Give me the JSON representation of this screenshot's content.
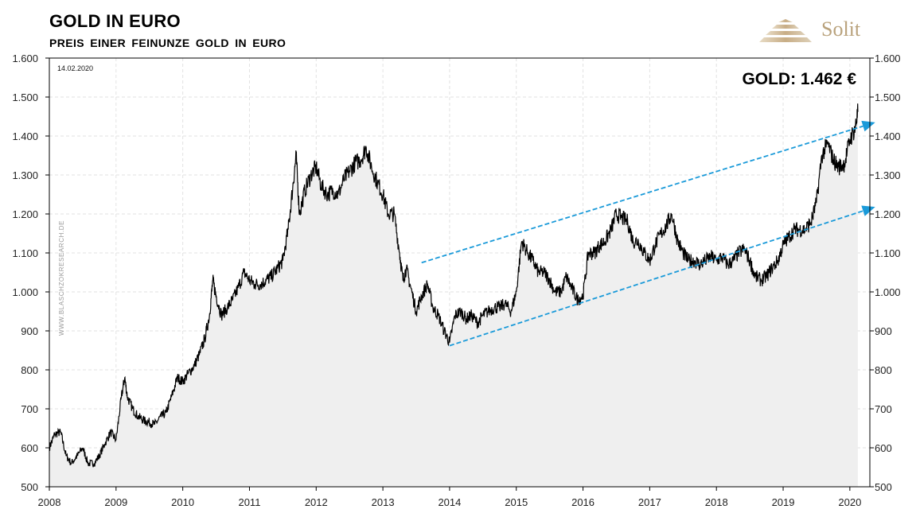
{
  "header": {
    "title": "GOLD IN EURO",
    "subtitle": "PREIS EINER FEINUNZE GOLD IN EURO"
  },
  "logo": {
    "text": "Solit",
    "color": "#b9a27c"
  },
  "chart_data": {
    "type": "area",
    "title": "GOLD IN EURO",
    "subtitle": "PREIS EINER FEINUNZE GOLD IN EURO",
    "date_stamp": "14.02.2020",
    "annotation": "GOLD: 1.462 €",
    "watermark": "WWW.BLASCHZOKRESEARCH.DE",
    "ylim": [
      500,
      1600
    ],
    "xlim": [
      2008.0,
      2020.3
    ],
    "y_ticks": [
      "500",
      "600",
      "700",
      "800",
      "900",
      "1.000",
      "1.100",
      "1.200",
      "1.300",
      "1.400",
      "1.500",
      "1.600"
    ],
    "y_tick_values": [
      500,
      600,
      700,
      800,
      900,
      1000,
      1100,
      1200,
      1300,
      1400,
      1500,
      1600
    ],
    "x_ticks": [
      "2008",
      "2009",
      "2010",
      "2011",
      "2012",
      "2013",
      "2014",
      "2015",
      "2016",
      "2017",
      "2018",
      "2019",
      "2020"
    ],
    "x_tick_values": [
      2008,
      2009,
      2010,
      2011,
      2012,
      2013,
      2014,
      2015,
      2016,
      2017,
      2018,
      2019,
      2020
    ],
    "grid": true,
    "y_axis_both_sides": true,
    "series": [
      {
        "type": "area",
        "color": "#000000",
        "fill": "#efefef",
        "x": [
          2008.0,
          2008.08,
          2008.17,
          2008.25,
          2008.33,
          2008.42,
          2008.5,
          2008.58,
          2008.67,
          2008.75,
          2008.83,
          2008.92,
          2009.0,
          2009.08,
          2009.13,
          2009.17,
          2009.25,
          2009.33,
          2009.42,
          2009.5,
          2009.58,
          2009.67,
          2009.75,
          2009.83,
          2009.92,
          2010.0,
          2010.08,
          2010.17,
          2010.25,
          2010.33,
          2010.4,
          2010.45,
          2010.5,
          2010.58,
          2010.67,
          2010.75,
          2010.83,
          2010.92,
          2011.0,
          2011.08,
          2011.17,
          2011.25,
          2011.33,
          2011.42,
          2011.5,
          2011.58,
          2011.65,
          2011.7,
          2011.75,
          2011.83,
          2011.92,
          2012.0,
          2012.08,
          2012.17,
          2012.25,
          2012.33,
          2012.42,
          2012.5,
          2012.58,
          2012.67,
          2012.75,
          2012.83,
          2012.92,
          2013.0,
          2013.08,
          2013.17,
          2013.25,
          2013.3,
          2013.35,
          2013.42,
          2013.5,
          2013.58,
          2013.67,
          2013.75,
          2013.83,
          2013.92,
          2014.0,
          2014.08,
          2014.17,
          2014.25,
          2014.33,
          2014.42,
          2014.5,
          2014.58,
          2014.67,
          2014.75,
          2014.83,
          2014.92,
          2015.0,
          2015.08,
          2015.17,
          2015.25,
          2015.33,
          2015.42,
          2015.5,
          2015.58,
          2015.67,
          2015.75,
          2015.83,
          2015.92,
          2016.0,
          2016.08,
          2016.17,
          2016.25,
          2016.33,
          2016.42,
          2016.5,
          2016.58,
          2016.67,
          2016.75,
          2016.83,
          2016.92,
          2017.0,
          2017.08,
          2017.17,
          2017.25,
          2017.33,
          2017.42,
          2017.5,
          2017.58,
          2017.67,
          2017.75,
          2017.83,
          2017.92,
          2018.0,
          2018.08,
          2018.17,
          2018.25,
          2018.33,
          2018.42,
          2018.5,
          2018.58,
          2018.67,
          2018.75,
          2018.83,
          2018.92,
          2019.0,
          2019.08,
          2019.17,
          2019.25,
          2019.33,
          2019.42,
          2019.5,
          2019.58,
          2019.67,
          2019.75,
          2019.83,
          2019.92,
          2020.0,
          2020.08,
          2020.12
        ],
        "values": [
          600,
          635,
          640,
          580,
          560,
          580,
          600,
          560,
          560,
          580,
          610,
          640,
          620,
          730,
          780,
          730,
          700,
          680,
          670,
          665,
          660,
          680,
          690,
          730,
          780,
          770,
          790,
          810,
          840,
          880,
          940,
          1030,
          990,
          940,
          960,
          980,
          1010,
          1050,
          1030,
          1020,
          1020,
          1030,
          1040,
          1060,
          1080,
          1160,
          1270,
          1350,
          1200,
          1260,
          1300,
          1320,
          1270,
          1250,
          1260,
          1250,
          1290,
          1310,
          1330,
          1340,
          1370,
          1320,
          1280,
          1250,
          1200,
          1200,
          1100,
          1030,
          1060,
          1010,
          950,
          990,
          1020,
          960,
          940,
          900,
          870,
          940,
          950,
          930,
          940,
          920,
          940,
          950,
          960,
          960,
          970,
          950,
          1000,
          1130,
          1100,
          1080,
          1050,
          1050,
          1030,
          1000,
          1000,
          1040,
          1010,
          980,
          990,
          1100,
          1100,
          1120,
          1130,
          1160,
          1200,
          1190,
          1180,
          1130,
          1130,
          1100,
          1080,
          1120,
          1150,
          1170,
          1200,
          1130,
          1100,
          1080,
          1080,
          1070,
          1080,
          1090,
          1080,
          1090,
          1070,
          1080,
          1100,
          1110,
          1080,
          1040,
          1030,
          1040,
          1060,
          1080,
          1120,
          1140,
          1160,
          1160,
          1160,
          1180,
          1230,
          1350,
          1380,
          1340,
          1320,
          1330,
          1390,
          1420,
          1462
        ]
      }
    ],
    "trendlines": [
      {
        "color": "#1a9ad9",
        "x": [
          2013.58,
          2020.38
        ],
        "y": [
          1075,
          1435
        ],
        "arrow": true
      },
      {
        "color": "#1a9ad9",
        "x": [
          2014.0,
          2020.38
        ],
        "y": [
          862,
          1218
        ],
        "arrow": true
      }
    ]
  }
}
